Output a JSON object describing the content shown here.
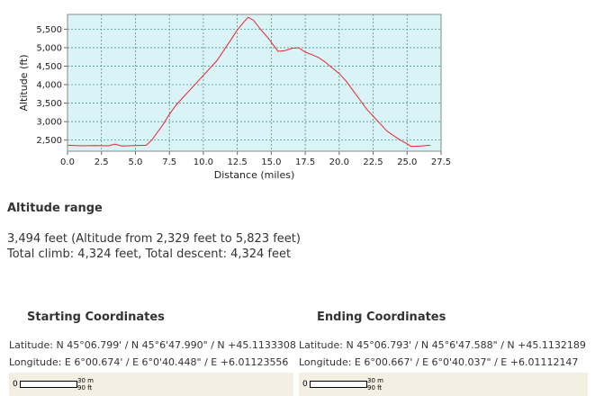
{
  "chart_data": {
    "type": "line",
    "xlabel": "Distance (miles)",
    "ylabel": "Altitude (ft)",
    "xlim": [
      0,
      27.5
    ],
    "ylim": [
      2200,
      5900
    ],
    "x_ticks": [
      "0.0",
      "2.5",
      "5.0",
      "7.5",
      "10.0",
      "12.5",
      "15.0",
      "17.5",
      "20.0",
      "22.5",
      "25.0",
      "27.5"
    ],
    "y_ticks": [
      "2,500",
      "3,000",
      "3,500",
      "4,000",
      "4,500",
      "5,000",
      "5,500"
    ],
    "grid": true,
    "background_color": "#d9f3f7",
    "line_color": "#e8262b",
    "series": [
      {
        "x": [
          0.0,
          1.0,
          2.0,
          3.0,
          3.5,
          4.0,
          5.0,
          5.8,
          6.2,
          6.5,
          7.0,
          7.5,
          8.0,
          9.0,
          10.0,
          11.0,
          12.0,
          12.5,
          13.0,
          13.3,
          13.7,
          14.2,
          14.8,
          15.5,
          16.0,
          16.5,
          17.0,
          17.5,
          18.0,
          18.5,
          19.0,
          19.5,
          20.0,
          20.5,
          21.0,
          21.5,
          22.0,
          22.5,
          23.0,
          23.5,
          24.0,
          24.5,
          25.0,
          25.3,
          26.0,
          26.7
        ],
        "y": [
          2360,
          2345,
          2350,
          2345,
          2390,
          2340,
          2350,
          2360,
          2500,
          2650,
          2900,
          3200,
          3450,
          3850,
          4250,
          4650,
          5200,
          5480,
          5700,
          5823,
          5740,
          5500,
          5250,
          4900,
          4920,
          4980,
          5000,
          4880,
          4810,
          4730,
          4600,
          4450,
          4300,
          4100,
          3850,
          3600,
          3350,
          3150,
          2950,
          2750,
          2620,
          2500,
          2400,
          2329,
          2340,
          2360
        ]
      }
    ]
  },
  "altitude_range": {
    "heading": "Altitude range",
    "line1": "3,494 feet (Altitude from 2,329 feet to 5,823 feet)",
    "line2": "Total climb: 4,324 feet, Total descent: 4,324 feet"
  },
  "start": {
    "heading": "Starting Coordinates",
    "latitude": "Latitude: N 45°06.799' / N 45°6'47.990\" / N +45.1133308",
    "longitude": "Longitude: E 6°00.674' / E 6°0'40.448\" / E +6.01123556",
    "scale_zero": "0",
    "scale_m": "30 m",
    "scale_ft": "90 ft"
  },
  "end": {
    "heading": "Ending Coordinates",
    "latitude": "Latitude: N 45°06.793' / N 45°6'47.588\" / N +45.1132189",
    "longitude": "Longitude: E 6°00.667' / E 6°0'40.037\" / E +6.01112147",
    "scale_zero": "0",
    "scale_m": "30 m",
    "scale_ft": "90 ft"
  }
}
